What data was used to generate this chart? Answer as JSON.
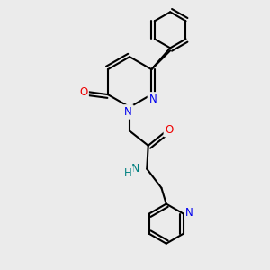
{
  "background_color": "#ebebeb",
  "bond_color": "#000000",
  "bond_width": 1.5,
  "atom_colors": {
    "N": "#0000ee",
    "O": "#ee0000",
    "NH": "#008080",
    "C": "#000000"
  },
  "font_size": 8.5,
  "figsize": [
    3.0,
    3.0
  ],
  "dpi": 100
}
